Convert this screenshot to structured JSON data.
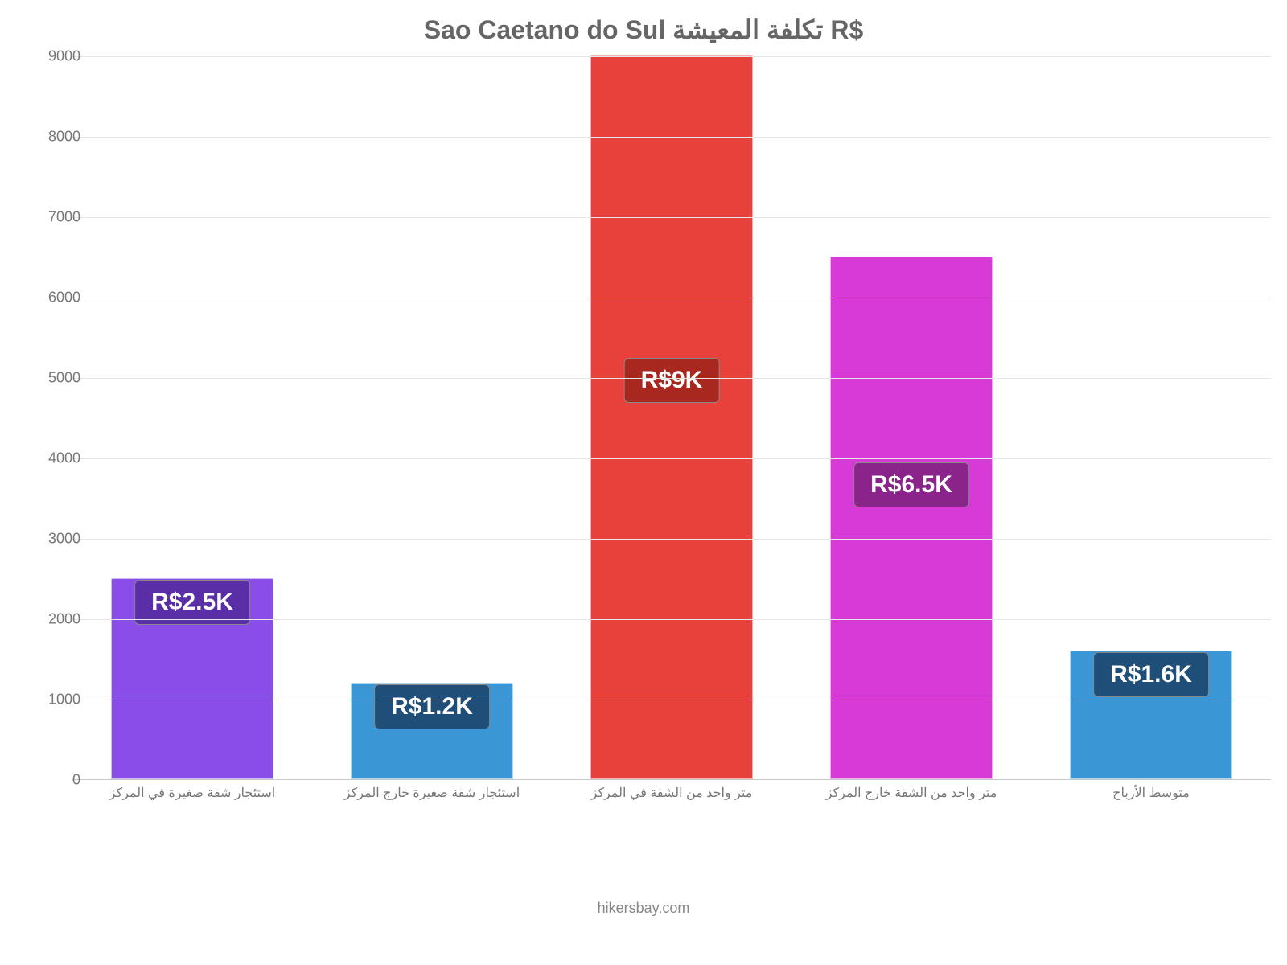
{
  "chart": {
    "type": "bar",
    "title": "Sao Caetano do Sul تكلفة المعيشة R$",
    "title_color": "#666666",
    "title_fontsize": 32,
    "background_color": "#ffffff",
    "grid_color": "#e6e6e6",
    "axis_line_color": "#c8c8c8",
    "tick_label_color": "#777777",
    "tick_label_fontsize": 18,
    "xlabel_color": "#777777",
    "xlabel_fontsize": 16,
    "ylim": [
      0,
      9000
    ],
    "ytick_step": 1000,
    "yticks": [
      0,
      1000,
      2000,
      3000,
      4000,
      5000,
      6000,
      7000,
      8000,
      9000
    ],
    "bar_width": 0.68,
    "categories": [
      "استئجار شقة صغيرة في المركز",
      "استئجار شقة صغيرة خارج المركز",
      "متر واحد من الشقة في المركز",
      "متر واحد من الشقة خارج المركز",
      "متوسط الأرباح"
    ],
    "values": [
      2500,
      1200,
      9000,
      6500,
      1600
    ],
    "value_labels": [
      "R$2.5K",
      "R$1.2K",
      "R$9K",
      "R$6.5K",
      "R$1.6K"
    ],
    "bar_colors": [
      "#8a4de8",
      "#3b96d6",
      "#e8403a",
      "#d83ad8",
      "#3b96d6"
    ],
    "badge_colors": [
      "#5a2ea6",
      "#1f4e79",
      "#a82820",
      "#8a248a",
      "#1f4e79"
    ],
    "badge_border_color": "#888888",
    "badge_fontsize": 30,
    "badge_text_color": "#ffffff",
    "footer": "hikersbay.com",
    "footer_color": "#888888",
    "footer_fontsize": 18
  }
}
